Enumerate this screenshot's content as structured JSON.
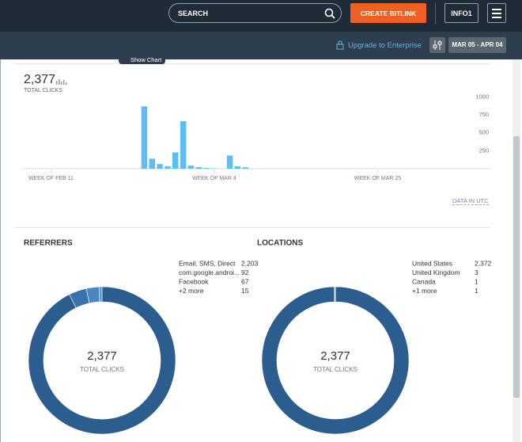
{
  "nav": {
    "search": "SEARCH",
    "create": "CREATE BITLINK",
    "account": "INFO1"
  },
  "toolbar": {
    "upgrade": "Upgrade to Enterprise",
    "date_range": "MAR 05 - APR 04",
    "show_chart": "Show Chart"
  },
  "total": {
    "value": "2,377",
    "label": "TOTAL CLICKS"
  },
  "utc_note": "DATA IN UTC",
  "chart_data": [
    {
      "type": "bar",
      "color": "#5dbdf4",
      "categories": [
        null,
        null,
        null,
        "WEEK OF FEB 11",
        null,
        null,
        null,
        null,
        null,
        null,
        null,
        null,
        null,
        null,
        null,
        null,
        null,
        null,
        null,
        null,
        null,
        null,
        null,
        null,
        "WEEK OF MAR 4",
        null,
        null,
        null,
        null,
        null,
        null,
        null,
        null,
        null,
        null,
        null,
        null,
        null,
        null,
        null,
        null,
        null,
        null,
        null,
        null,
        "WEEK OF MAR 25",
        null,
        null,
        null,
        null,
        null,
        null,
        null,
        null,
        null,
        null,
        null,
        null,
        null,
        null
      ],
      "values": [
        0,
        0,
        0,
        0,
        0,
        0,
        0,
        0,
        0,
        0,
        0,
        0,
        0,
        0,
        0,
        870,
        140,
        65,
        33,
        228,
        663,
        43,
        22,
        10,
        5,
        0,
        185,
        33,
        20,
        0,
        0,
        0,
        0,
        0,
        0,
        0,
        0,
        0,
        0,
        0,
        0,
        0,
        0,
        0,
        0,
        0,
        0,
        0,
        0,
        0,
        0,
        0,
        0,
        0,
        0,
        0,
        0,
        0,
        0,
        0
      ],
      "ylim": [
        0,
        1050
      ],
      "yticks": [
        250,
        500,
        750,
        1000
      ],
      "grid": false
    },
    {
      "type": "donut",
      "title": "REFERRERS",
      "categories": [
        "Email, SMS, Direct",
        "com.google.androi...",
        "Facebook",
        "+2 more"
      ],
      "values": [
        2203,
        92,
        67,
        15
      ],
      "value_labels": [
        "2,203",
        "92",
        "67",
        "15"
      ],
      "colors": [
        "#2b5d8e",
        "#3a73aa",
        "#4a86c0",
        "#5a97cf"
      ]
    },
    {
      "type": "donut",
      "title": "LOCATIONS",
      "categories": [
        "United States",
        "United Kingdom",
        "Canada",
        "+1 more"
      ],
      "values": [
        2372,
        3,
        1,
        1
      ],
      "value_labels": [
        "2,372",
        "3",
        "1",
        "1"
      ],
      "colors": [
        "#2b5d8e",
        "#3a73aa",
        "#4a86c0",
        "#5a97cf"
      ]
    }
  ]
}
